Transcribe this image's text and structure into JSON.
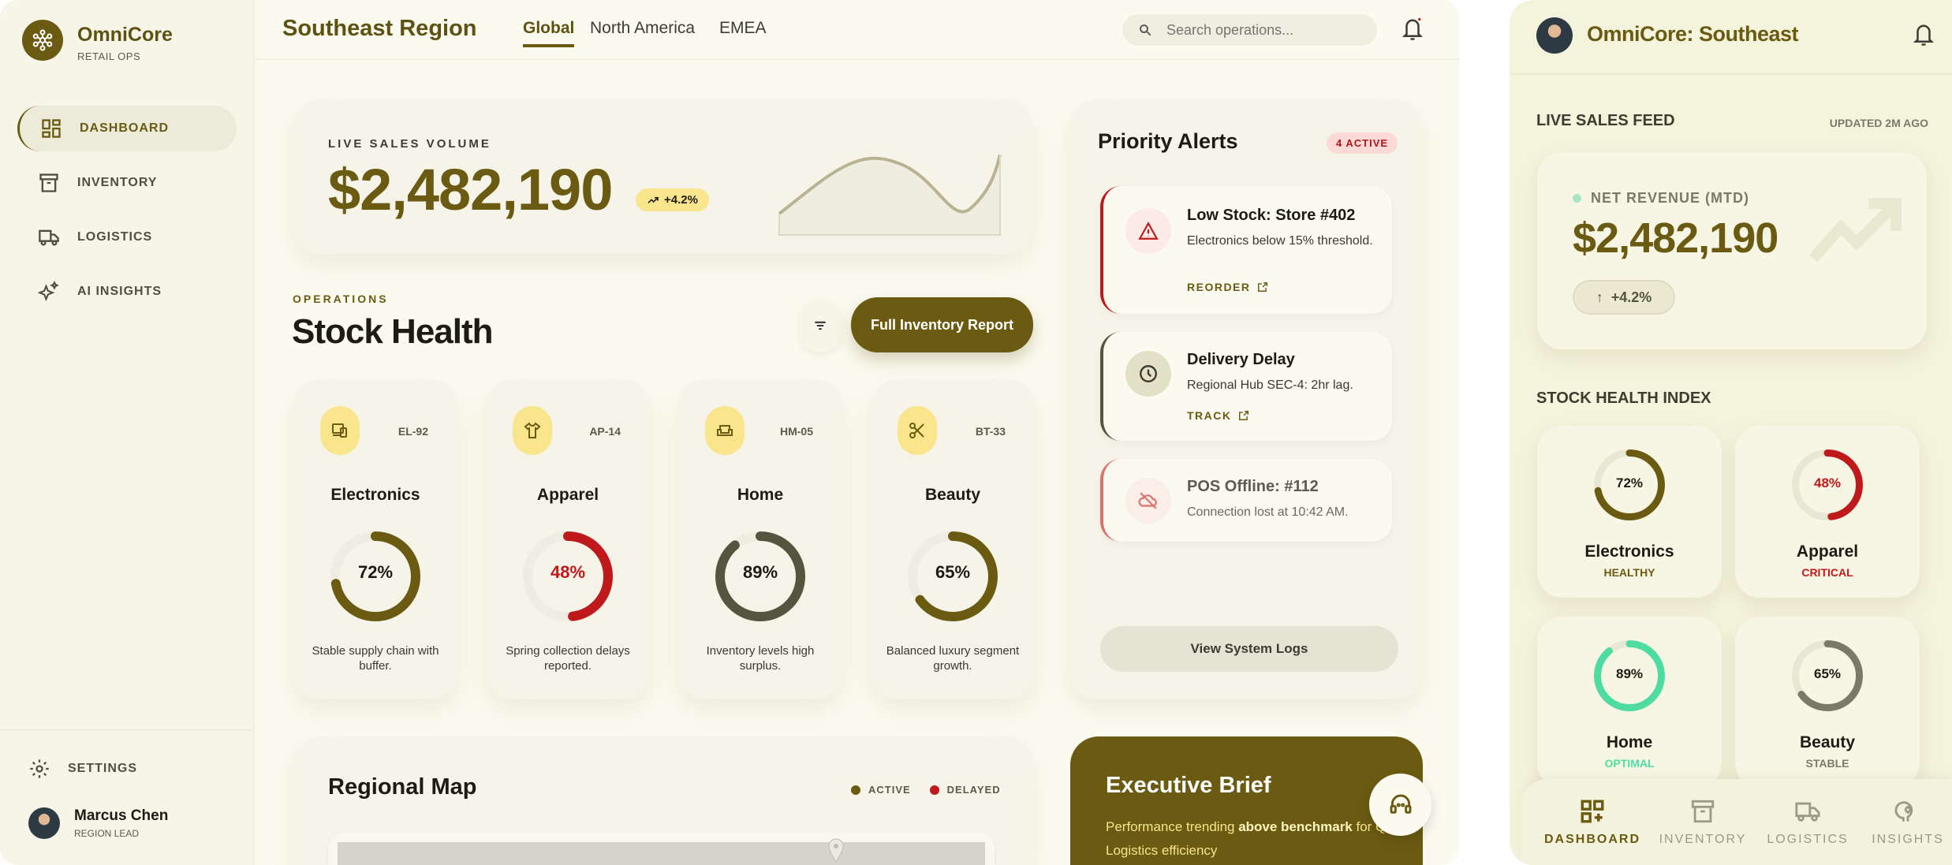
{
  "colors": {
    "brand": "#6b5b12",
    "critical": "#c0191c",
    "optimal": "#4fdca3",
    "stable": "#7b7a6a",
    "cream": "#fbfaef"
  },
  "sidebar": {
    "brand": "OmniCore",
    "brand_sub": "RETAIL OPS",
    "items": [
      {
        "label": "DASHBOARD",
        "icon": "dashboard-icon"
      },
      {
        "label": "INVENTORY",
        "icon": "archive-icon"
      },
      {
        "label": "LOGISTICS",
        "icon": "truck-icon"
      },
      {
        "label": "AI INSIGHTS",
        "icon": "sparkle-icon"
      }
    ],
    "settings": "SETTINGS",
    "user": {
      "name": "Marcus Chen",
      "role": "REGION LEAD"
    }
  },
  "header": {
    "title": "Southeast Region",
    "tabs": [
      "Global",
      "North America",
      "EMEA"
    ],
    "active_tab": "Global",
    "search_placeholder": "Search operations..."
  },
  "sales": {
    "label": "LIVE SALES VOLUME",
    "value": "$2,482,190",
    "change": "+4.2%"
  },
  "operations": {
    "eyebrow": "OPERATIONS",
    "title": "Stock Health",
    "report_button": "Full Inventory Report"
  },
  "stock": [
    {
      "name": "Electronics",
      "code": "EL-92",
      "percent": 72,
      "desc": "Stable supply chain with buffer.",
      "icon": "devices-icon"
    },
    {
      "name": "Apparel",
      "code": "AP-14",
      "percent": 48,
      "desc": "Spring collection delays reported.",
      "icon": "shirt-icon"
    },
    {
      "name": "Home",
      "code": "HM-05",
      "percent": 89,
      "desc": "Inventory levels high surplus.",
      "icon": "sofa-icon"
    },
    {
      "name": "Beauty",
      "code": "BT-33",
      "percent": 65,
      "desc": "Balanced luxury segment growth.",
      "icon": "scissors-icon"
    }
  ],
  "alerts": {
    "title": "Priority Alerts",
    "badge": "4 ACTIVE",
    "items": [
      {
        "title": "Low Stock: Store #402",
        "desc": "Electronics below 15% threshold.",
        "action": "REORDER"
      },
      {
        "title": "Delivery Delay",
        "desc": "Regional Hub SEC-4: 2hr lag.",
        "action": "TRACK"
      },
      {
        "title": "POS Offline: #112",
        "desc": "Connection lost at 10:42 AM."
      }
    ],
    "logs_button": "View System Logs"
  },
  "map": {
    "title": "Regional Map",
    "legend": [
      "ACTIVE",
      "DELAYED"
    ]
  },
  "brief": {
    "title": "Executive Brief",
    "text_a": "Performance trending ",
    "text_b": "above benchmark",
    "text_c": " for Q2. Logistics efficiency"
  },
  "mobile": {
    "title": "OmniCore: Southeast",
    "feed_label": "LIVE SALES FEED",
    "updated": "UPDATED 2M AGO",
    "revenue_label": "NET REVENUE (MTD)",
    "revenue": "$2,482,190",
    "change": "+4.2%",
    "index_title": "STOCK HEALTH INDEX",
    "stock": [
      {
        "name": "Electronics",
        "percent": 72,
        "status": "HEALTHY"
      },
      {
        "name": "Apparel",
        "percent": 48,
        "status": "CRITICAL"
      },
      {
        "name": "Home",
        "percent": 89,
        "status": "OPTIMAL"
      },
      {
        "name": "Beauty",
        "percent": 65,
        "status": "STABLE"
      }
    ],
    "nav": [
      "DASHBOARD",
      "INVENTORY",
      "LOGISTICS",
      "INSIGHTS"
    ],
    "active_nav": "DASHBOARD"
  }
}
